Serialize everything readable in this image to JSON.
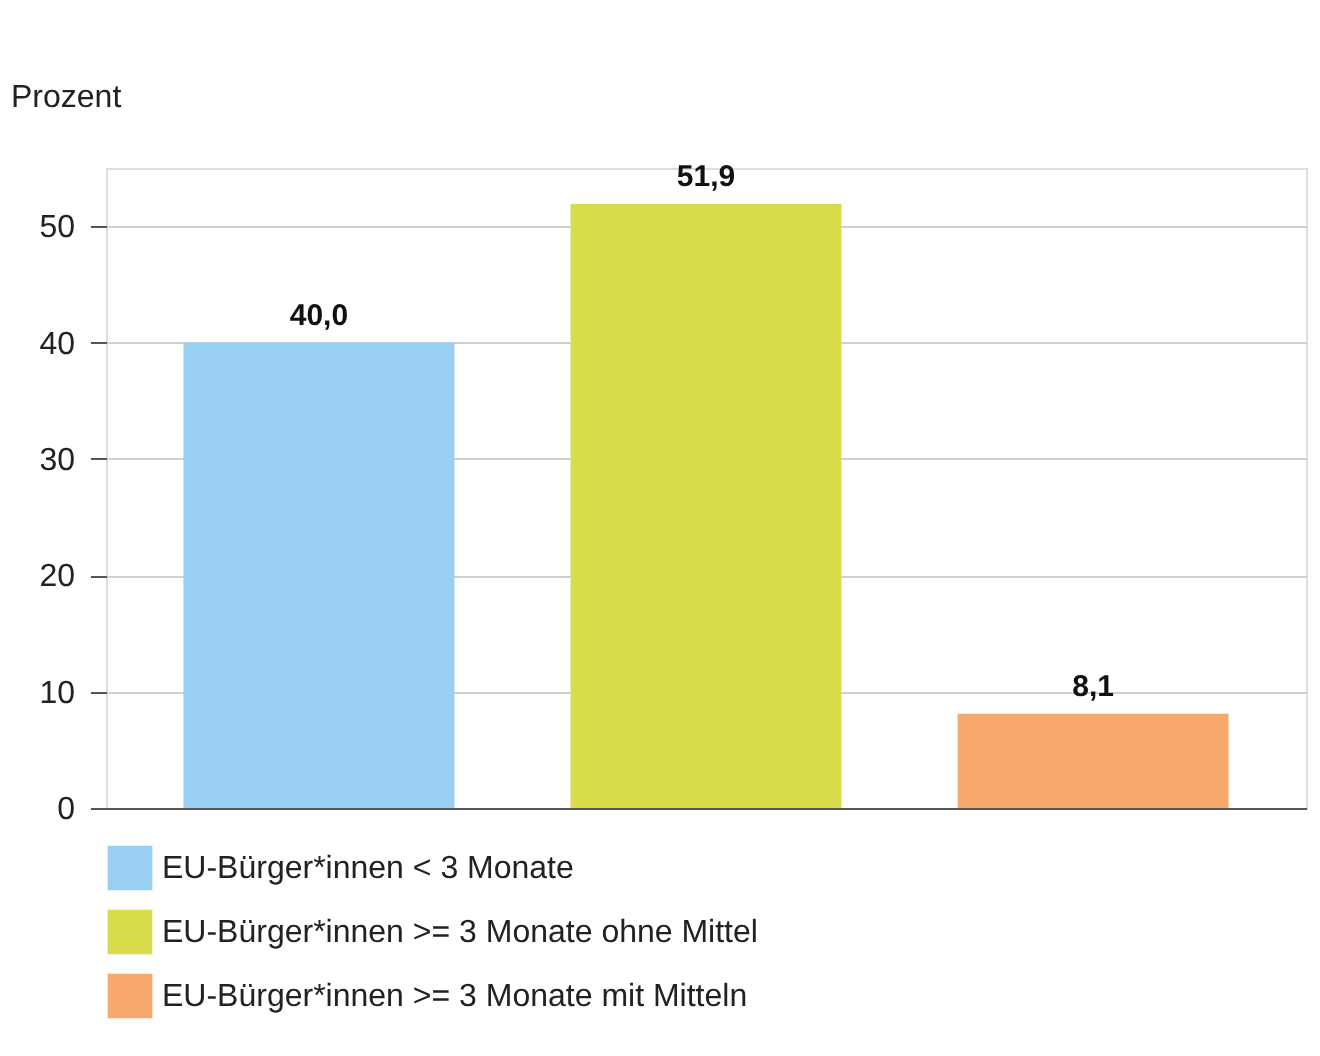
{
  "chart_data": {
    "type": "bar",
    "ylabel": "Prozent",
    "categories": [
      null,
      null,
      null
    ],
    "series": [
      {
        "name": "EU-Bürger*innen < 3 Monate",
        "color": "#99cff2",
        "values": [
          40.0,
          null,
          null
        ],
        "value_labels": [
          "40,0",
          null,
          null
        ]
      },
      {
        "name": "EU-Bürger*innen >= 3 Monate ohne Mittel",
        "color": "#d7dc4c",
        "values": [
          null,
          51.9,
          null
        ],
        "value_labels": [
          null,
          "51,9",
          null
        ]
      },
      {
        "name": "EU-Bürger*innen >= 3 Monate mit Mitteln",
        "color": "#f7a86d",
        "values": [
          null,
          null,
          8.1
        ],
        "value_labels": [
          null,
          null,
          "8,1"
        ]
      }
    ],
    "ylim": [
      0,
      55
    ],
    "yticks": [
      0,
      10,
      20,
      30,
      40,
      50
    ],
    "grid": "y",
    "legend": "bottom"
  }
}
